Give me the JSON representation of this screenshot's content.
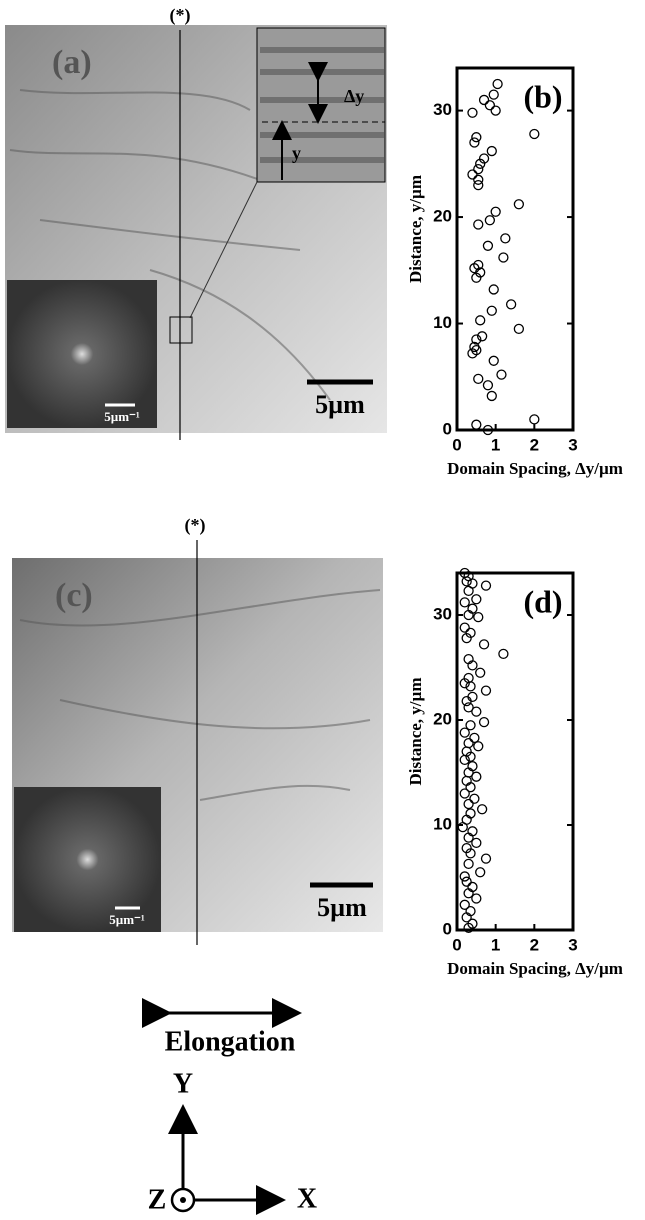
{
  "chart_data": [
    {
      "type": "scatter",
      "panel_label": "(b)",
      "x_label": "Domain Spacing, Δy/µm",
      "y_label": "Distance, y/µm",
      "xlim": [
        0,
        3
      ],
      "ylim": [
        0,
        34
      ],
      "xticks": [
        0,
        1,
        2,
        3
      ],
      "yticks": [
        0,
        10,
        20,
        30
      ],
      "marker_color": "#000000",
      "x": [
        1.05,
        0.95,
        0.7,
        0.85,
        1.0,
        0.4,
        2.0,
        0.5,
        0.45,
        0.9,
        0.7,
        0.6,
        0.55,
        0.4,
        0.55,
        0.55,
        1.6,
        1.0,
        0.85,
        0.55,
        1.25,
        0.8,
        1.2,
        0.55,
        0.45,
        0.6,
        0.5,
        0.95,
        1.4,
        0.9,
        0.6,
        1.6,
        0.5,
        0.65,
        0.45,
        0.5,
        0.4,
        0.95,
        1.15,
        0.55,
        0.8,
        0.9,
        0.5,
        0.8,
        2.0
      ],
      "values": [
        32.5,
        31.5,
        31,
        30.5,
        30,
        29.8,
        27.8,
        27.5,
        27,
        26.2,
        25.5,
        25,
        24.5,
        24,
        23.5,
        23,
        21.2,
        20.5,
        19.7,
        19.3,
        18,
        17.3,
        16.2,
        15.5,
        15.2,
        14.8,
        14.3,
        13.2,
        11.8,
        11.2,
        10.3,
        9.5,
        8.5,
        8.8,
        7.8,
        7.5,
        7.2,
        6.5,
        5.2,
        4.8,
        4.2,
        3.2,
        0.5,
        0,
        1
      ]
    },
    {
      "type": "scatter",
      "panel_label": "(d)",
      "x_label": "Domain Spacing, Δy/µm",
      "y_label": "Distance, y/µm",
      "xlim": [
        0,
        3
      ],
      "ylim": [
        0,
        34
      ],
      "xticks": [
        0,
        1,
        2,
        3
      ],
      "yticks": [
        0,
        10,
        20,
        30
      ],
      "marker_color": "#000000",
      "x": [
        0.2,
        0.3,
        0.25,
        0.4,
        0.75,
        0.3,
        0.5,
        0.2,
        0.4,
        0.3,
        0.55,
        0.2,
        0.35,
        0.25,
        0.7,
        1.2,
        0.3,
        0.4,
        0.6,
        0.3,
        0.2,
        0.35,
        0.75,
        0.4,
        0.25,
        0.3,
        0.5,
        0.7,
        0.35,
        0.2,
        0.45,
        0.3,
        0.55,
        0.25,
        0.35,
        0.2,
        0.4,
        0.3,
        0.5,
        0.25,
        0.35,
        0.2,
        0.45,
        0.3,
        0.65,
        0.35,
        0.25,
        0.15,
        0.4,
        0.3,
        0.5,
        0.25,
        0.35,
        0.75,
        0.3,
        0.6,
        0.2,
        0.25,
        0.4,
        0.3,
        0.5,
        0.2,
        0.35,
        0.25,
        0.4,
        0.3
      ],
      "values": [
        34,
        33.7,
        33.2,
        33,
        32.8,
        32.3,
        31.5,
        31.2,
        30.6,
        30,
        29.8,
        28.8,
        28.3,
        27.8,
        27.2,
        26.3,
        25.8,
        25.2,
        24.5,
        24,
        23.5,
        23.2,
        22.8,
        22.2,
        21.8,
        21.2,
        20.8,
        19.8,
        19.5,
        18.8,
        18.3,
        17.8,
        17.5,
        17,
        16.5,
        16.2,
        15.6,
        15,
        14.6,
        14.2,
        13.6,
        13,
        12.5,
        12,
        11.5,
        11.1,
        10.5,
        9.8,
        9.4,
        8.8,
        8.3,
        7.8,
        7.3,
        6.8,
        6.3,
        5.5,
        5.1,
        4.6,
        4.1,
        3.5,
        3,
        2.4,
        1.8,
        1.2,
        0.6,
        0.2
      ]
    }
  ],
  "micrographs": [
    {
      "label": "(a)",
      "marker": "(*)",
      "scale_bar": "5µm",
      "fft_scale_bar": "5µm⁻¹",
      "inset_labels": [
        "Δy",
        "y"
      ]
    },
    {
      "label": "(c)",
      "marker": "(*)",
      "scale_bar": "5µm",
      "fft_scale_bar": "5µm⁻¹"
    }
  ],
  "elongation": "Elongation",
  "axes_labels": {
    "x": "X",
    "y": "Y",
    "z": "Z"
  }
}
